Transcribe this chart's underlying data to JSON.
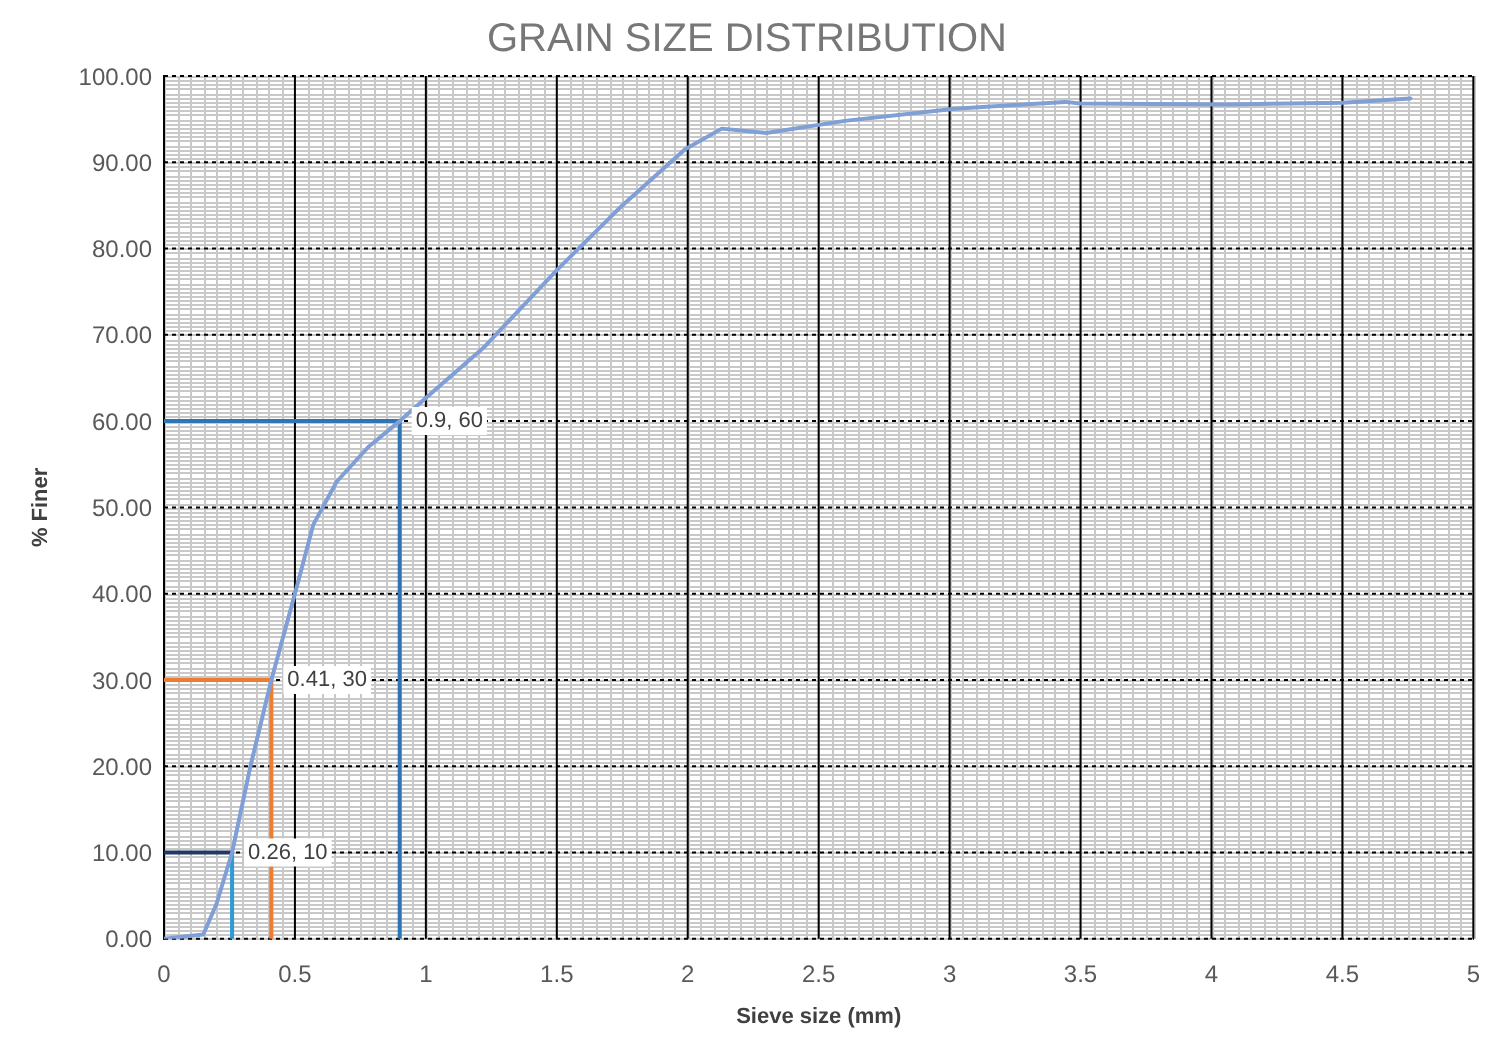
{
  "chart_data": {
    "type": "line",
    "title": "GRAIN SIZE DISTRIBUTION",
    "xlabel": "Sieve size (mm)",
    "ylabel": "% Finer",
    "xlim": [
      0,
      5
    ],
    "xticks": [
      0,
      0.5,
      1,
      1.5,
      2,
      2.5,
      3,
      3.5,
      4,
      4.5,
      5
    ],
    "ylim": [
      0,
      100
    ],
    "yticks": [
      {
        "value": 0,
        "label": "0.00"
      },
      {
        "value": 10,
        "label": "10.00"
      },
      {
        "value": 20,
        "label": "20.00"
      },
      {
        "value": 30,
        "label": "30.00"
      },
      {
        "value": 40,
        "label": "40.00"
      },
      {
        "value": 50,
        "label": "50.00"
      },
      {
        "value": 60,
        "label": "60.00"
      },
      {
        "value": 70,
        "label": "70.00"
      },
      {
        "value": 80,
        "label": "80.00"
      },
      {
        "value": 90,
        "label": "90.00"
      },
      {
        "value": 100,
        "label": "100.00"
      }
    ],
    "grid": true,
    "legend": false,
    "marker": "none",
    "line_style": "solid",
    "series": [
      {
        "color": "#7f9fd6",
        "x": [
          0,
          0.15,
          0.2,
          0.26,
          0.33,
          0.41,
          0.5,
          0.57,
          0.66,
          0.78,
          0.9,
          1.05,
          1.22,
          1.5,
          1.75,
          1.99,
          2.13,
          2.3,
          2.6,
          3.02,
          3.44,
          3.5,
          4.06,
          4.5,
          4.76
        ],
        "values": [
          0,
          0.5,
          4,
          10,
          20,
          30,
          40,
          48,
          53,
          57,
          60,
          64,
          68.5,
          77.5,
          85,
          91.5,
          93.9,
          93.4,
          94.8,
          96.2,
          97,
          96.8,
          96.7,
          96.9,
          97.4
        ]
      },
      {
        "color": "#203864",
        "x": [
          0,
          0.26
        ],
        "values": [
          10,
          10
        ]
      },
      {
        "color": "#2e9bd6",
        "x": [
          0.26,
          0.26
        ],
        "values": [
          10,
          0
        ]
      },
      {
        "color": "#ed7d31",
        "x": [
          0,
          0.41
        ],
        "values": [
          30,
          30
        ]
      },
      {
        "color": "#ed7d31",
        "x": [
          0.41,
          0.41
        ],
        "values": [
          30,
          0
        ]
      },
      {
        "color": "#2e75b6",
        "x": [
          0,
          0.9
        ],
        "values": [
          60,
          60
        ]
      },
      {
        "color": "#2e75b6",
        "x": [
          0.9,
          0.9
        ],
        "values": [
          60,
          0
        ]
      }
    ],
    "annotations": [
      {
        "text": "0.26, 10",
        "x": 0.26,
        "y": 10
      },
      {
        "text": "0.41, 30",
        "x": 0.41,
        "y": 30
      },
      {
        "text": "0.9, 60",
        "x": 0.9,
        "y": 60
      }
    ]
  }
}
